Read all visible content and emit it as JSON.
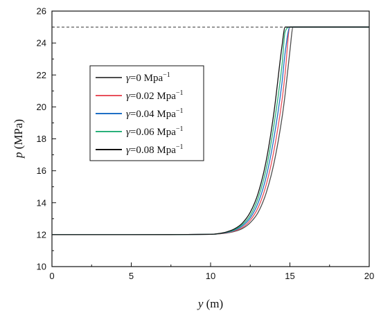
{
  "chart_data": {
    "type": "line",
    "xlabel": {
      "var": "y",
      "unit": " (m)"
    },
    "ylabel": {
      "var": "p",
      "unit": " (MPa)"
    },
    "xlim": [
      0,
      20
    ],
    "ylim": [
      10,
      26
    ],
    "xticks": [
      "0",
      "5",
      "10",
      "15",
      "20"
    ],
    "yticks": [
      "10",
      "12",
      "14",
      "16",
      "18",
      "20",
      "22",
      "24",
      "26"
    ],
    "grid": false,
    "legend_position": "center-left",
    "reference_line": {
      "y": 25,
      "style": "dashed",
      "color": "#333333"
    },
    "x": [
      0,
      5,
      10,
      10.5,
      11,
      11.5,
      12,
      12.5,
      13,
      13.5,
      14,
      14.5,
      14.7,
      15,
      15.2,
      16,
      20
    ],
    "series": [
      {
        "name": "γ=0 Mpa⁻¹",
        "legend_var": "γ",
        "legend_rest": "=0 Mpa",
        "color": "#4d4d4d",
        "values": [
          12,
          12,
          12.02,
          12.05,
          12.1,
          12.2,
          12.38,
          12.75,
          13.4,
          14.6,
          16.5,
          19.3,
          20.8,
          23.5,
          25,
          25,
          25
        ]
      },
      {
        "name": "γ=0.02 Mpa⁻¹",
        "legend_var": "γ",
        "legend_rest": "=0.02 Mpa",
        "color": "#e8505b",
        "values": [
          12,
          12,
          12.02,
          12.05,
          12.11,
          12.23,
          12.45,
          12.9,
          13.7,
          15.1,
          17.3,
          20.4,
          22.1,
          25,
          25,
          25,
          25
        ]
      },
      {
        "name": "γ=0.04 Mpa⁻¹",
        "legend_var": "γ",
        "legend_rest": "=0.04 Mpa",
        "color": "#1f6fc5",
        "values": [
          12,
          12,
          12.02,
          12.06,
          12.13,
          12.27,
          12.54,
          13.05,
          14.0,
          15.6,
          18.1,
          21.5,
          23.4,
          25,
          25,
          25,
          25
        ]
      },
      {
        "name": "γ=0.06 Mpa⁻¹",
        "legend_var": "γ",
        "legend_rest": "=0.06 Mpa",
        "color": "#2ab07a",
        "values": [
          12,
          12,
          12.02,
          12.06,
          12.15,
          12.31,
          12.63,
          13.2,
          14.3,
          16.1,
          18.9,
          22.6,
          24.7,
          25,
          25,
          25,
          25
        ]
      },
      {
        "name": "γ=0.08 Mpa⁻¹",
        "legend_var": "γ",
        "legend_rest": "=0.08 Mpa",
        "color": "#111111",
        "values": [
          12,
          12,
          12.02,
          12.07,
          12.17,
          12.36,
          12.72,
          13.4,
          14.6,
          16.6,
          19.7,
          23.8,
          25,
          25,
          25,
          25,
          25
        ]
      }
    ]
  }
}
